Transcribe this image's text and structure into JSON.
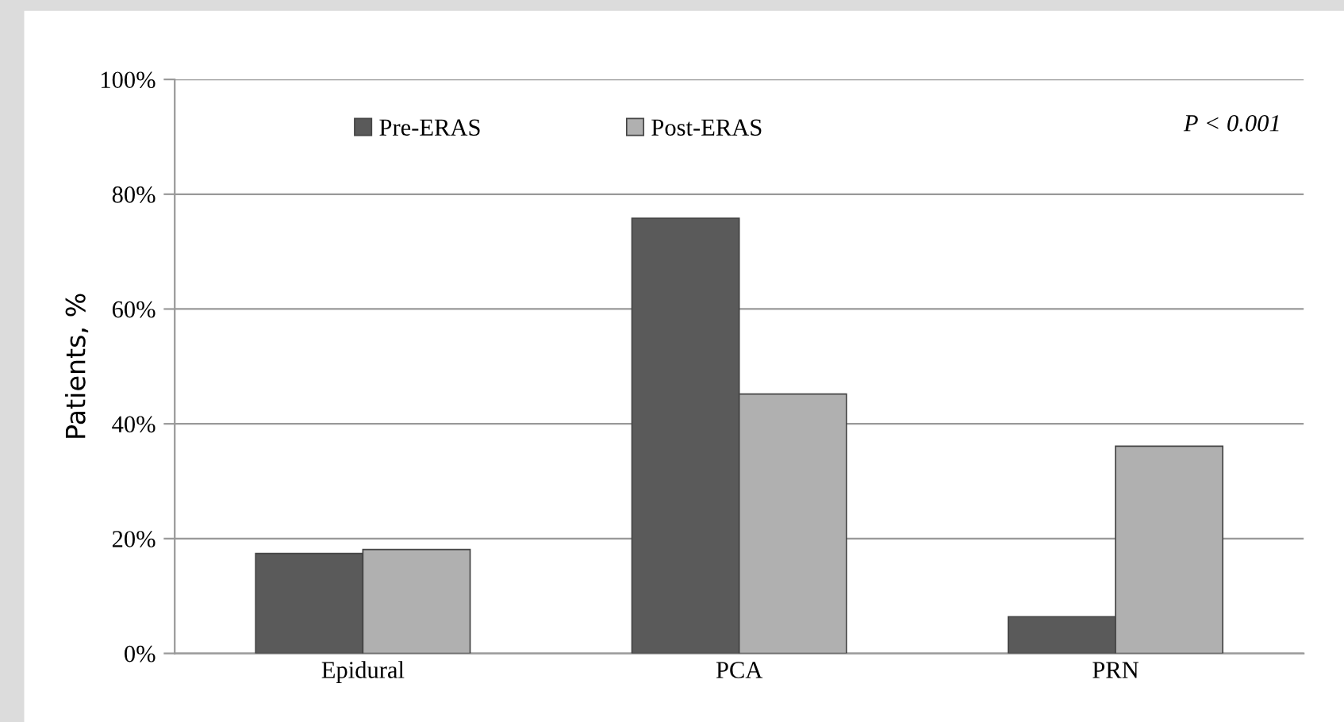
{
  "chart_data": {
    "type": "bar",
    "ylabel": "Patients, %",
    "categories": [
      "Epidural",
      "PCA",
      "PRN"
    ],
    "series": [
      {
        "name": "Pre-ERAS",
        "color": "#5a5a5a",
        "values": [
          17.4,
          75.8,
          6.4
        ]
      },
      {
        "name": "Post-ERAS",
        "color": "#b0b0b0",
        "values": [
          18.1,
          45.2,
          36.1
        ]
      }
    ],
    "ylim": [
      0,
      100
    ],
    "yticks": [
      {
        "value": 0,
        "label": "0%"
      },
      {
        "value": 20,
        "label": "20%"
      },
      {
        "value": 40,
        "label": "40%"
      },
      {
        "value": 60,
        "label": "60%"
      },
      {
        "value": 80,
        "label": "80%"
      },
      {
        "value": 100,
        "label": "100%"
      }
    ],
    "grid": "y",
    "legend": "top",
    "annotations": [
      "P < 0.001"
    ]
  }
}
